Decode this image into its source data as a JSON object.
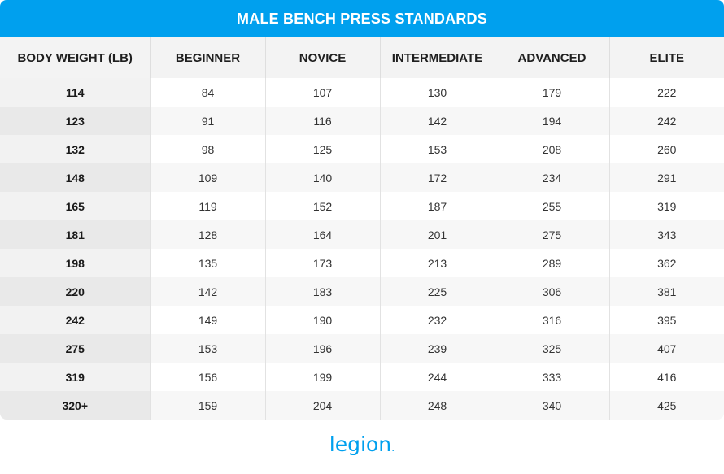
{
  "chart_data": {
    "type": "table",
    "title": "MALE BENCH PRESS STANDARDS",
    "columns": [
      "BODY WEIGHT (LB)",
      "BEGINNER",
      "NOVICE",
      "INTERMEDIATE",
      "ADVANCED",
      "ELITE"
    ],
    "rows": [
      [
        "114",
        "84",
        "107",
        "130",
        "179",
        "222"
      ],
      [
        "123",
        "91",
        "116",
        "142",
        "194",
        "242"
      ],
      [
        "132",
        "98",
        "125",
        "153",
        "208",
        "260"
      ],
      [
        "148",
        "109",
        "140",
        "172",
        "234",
        "291"
      ],
      [
        "165",
        "119",
        "152",
        "187",
        "255",
        "319"
      ],
      [
        "181",
        "128",
        "164",
        "201",
        "275",
        "343"
      ],
      [
        "198",
        "135",
        "173",
        "213",
        "289",
        "362"
      ],
      [
        "220",
        "142",
        "183",
        "225",
        "306",
        "381"
      ],
      [
        "242",
        "149",
        "190",
        "232",
        "316",
        "395"
      ],
      [
        "275",
        "153",
        "196",
        "239",
        "325",
        "407"
      ],
      [
        "319",
        "156",
        "199",
        "244",
        "333",
        "416"
      ],
      [
        "320+",
        "159",
        "204",
        "248",
        "340",
        "425"
      ]
    ]
  },
  "brand": {
    "logo_text": "legion",
    "logo_dot": "."
  },
  "colors": {
    "accent": "#00a0ee",
    "header_bg": "#f3f3f3"
  }
}
